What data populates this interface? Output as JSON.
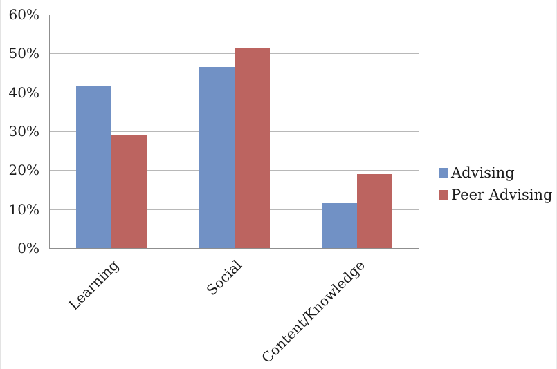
{
  "chart_data": {
    "type": "bar",
    "title": "",
    "xlabel": "",
    "ylabel": "",
    "categories": [
      "Learning",
      "Social",
      "Content/Knowledge"
    ],
    "series": [
      {
        "name": "Advising",
        "color": "#7191C5",
        "values": [
          41.5,
          46.5,
          11.5
        ]
      },
      {
        "name": "Peer Advising",
        "color": "#BC6460",
        "values": [
          29,
          51.5,
          19
        ]
      }
    ],
    "ylim": [
      0,
      60
    ],
    "ytick_step": 10,
    "ytick_labels": [
      "0%",
      "10%",
      "20%",
      "30%",
      "40%",
      "50%",
      "60%"
    ],
    "grid": true,
    "legend_position": "right",
    "colors": {
      "gridline": "#b8b8b8",
      "axis": "#8f8f8f",
      "text": "#1c1c1c",
      "background": "#ffffff"
    }
  }
}
